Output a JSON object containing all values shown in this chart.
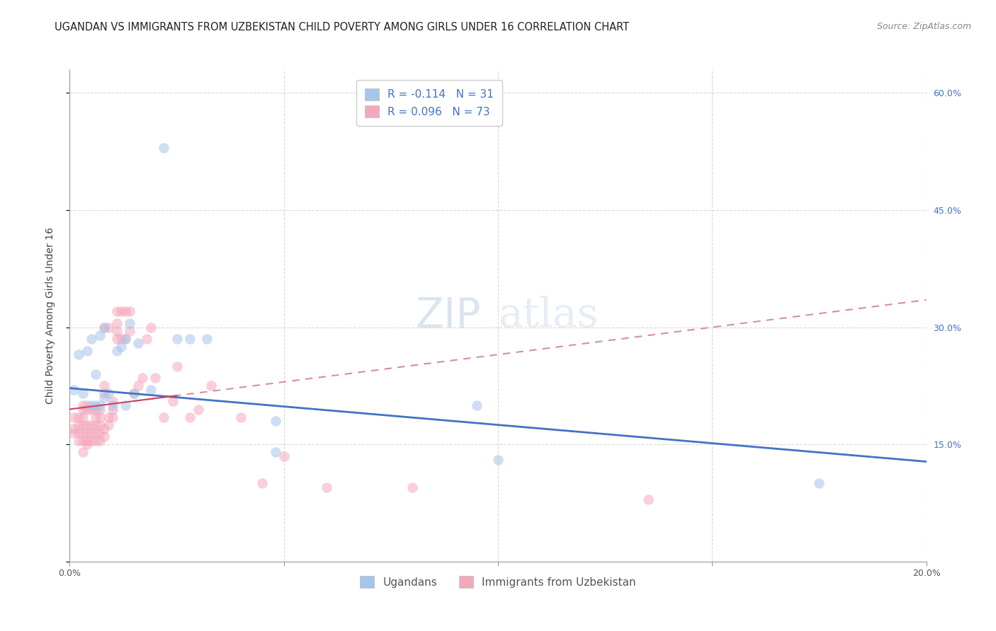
{
  "title": "UGANDAN VS IMMIGRANTS FROM UZBEKISTAN CHILD POVERTY AMONG GIRLS UNDER 16 CORRELATION CHART",
  "source": "Source: ZipAtlas.com",
  "ylabel": "Child Poverty Among Girls Under 16",
  "xlim": [
    0.0,
    0.2
  ],
  "ylim": [
    0.0,
    0.63
  ],
  "ugandan_color": "#a8c4e8",
  "uzbekistan_color": "#f4a8bc",
  "trend_ugandan_color": "#4472c4",
  "trend_uzbekistan_solid_color": "#d04060",
  "trend_uzbekistan_dash_color": "#d4909c",
  "legend_r1": "R = -0.114",
  "legend_n1": "N = 31",
  "legend_r2": "R = 0.096",
  "legend_n2": "N = 73",
  "label1": "Ugandans",
  "label2": "Immigrants from Uzbekistan",
  "watermark_zip": "ZIP",
  "watermark_atlas": "atlas",
  "ugandan_x": [
    0.002,
    0.003,
    0.004,
    0.005,
    0.005,
    0.006,
    0.006,
    0.007,
    0.007,
    0.008,
    0.008,
    0.009,
    0.01,
    0.011,
    0.012,
    0.013,
    0.013,
    0.014,
    0.015,
    0.016,
    0.019,
    0.022,
    0.025,
    0.028,
    0.032,
    0.048,
    0.048,
    0.095,
    0.1,
    0.175,
    0.001
  ],
  "ugandan_y": [
    0.265,
    0.215,
    0.27,
    0.2,
    0.285,
    0.2,
    0.24,
    0.2,
    0.29,
    0.21,
    0.3,
    0.215,
    0.2,
    0.27,
    0.275,
    0.2,
    0.285,
    0.305,
    0.215,
    0.28,
    0.22,
    0.53,
    0.285,
    0.285,
    0.285,
    0.18,
    0.14,
    0.2,
    0.13,
    0.1,
    0.22
  ],
  "uzbekistan_x": [
    0.001,
    0.001,
    0.001,
    0.002,
    0.002,
    0.002,
    0.002,
    0.003,
    0.003,
    0.003,
    0.003,
    0.003,
    0.003,
    0.003,
    0.004,
    0.004,
    0.004,
    0.004,
    0.004,
    0.004,
    0.005,
    0.005,
    0.005,
    0.005,
    0.006,
    0.006,
    0.006,
    0.006,
    0.006,
    0.007,
    0.007,
    0.007,
    0.007,
    0.007,
    0.008,
    0.008,
    0.008,
    0.008,
    0.008,
    0.009,
    0.009,
    0.009,
    0.01,
    0.01,
    0.01,
    0.011,
    0.011,
    0.011,
    0.011,
    0.012,
    0.012,
    0.013,
    0.013,
    0.014,
    0.014,
    0.015,
    0.016,
    0.017,
    0.018,
    0.019,
    0.02,
    0.022,
    0.024,
    0.025,
    0.028,
    0.03,
    0.033,
    0.04,
    0.045,
    0.05,
    0.06,
    0.08,
    0.135
  ],
  "uzbekistan_y": [
    0.165,
    0.17,
    0.185,
    0.155,
    0.165,
    0.175,
    0.185,
    0.14,
    0.155,
    0.165,
    0.175,
    0.185,
    0.195,
    0.2,
    0.15,
    0.155,
    0.165,
    0.175,
    0.195,
    0.2,
    0.155,
    0.165,
    0.175,
    0.195,
    0.155,
    0.165,
    0.175,
    0.185,
    0.195,
    0.155,
    0.165,
    0.175,
    0.185,
    0.195,
    0.16,
    0.17,
    0.215,
    0.225,
    0.3,
    0.175,
    0.185,
    0.3,
    0.185,
    0.195,
    0.205,
    0.285,
    0.295,
    0.305,
    0.32,
    0.285,
    0.32,
    0.285,
    0.32,
    0.295,
    0.32,
    0.215,
    0.225,
    0.235,
    0.285,
    0.3,
    0.235,
    0.185,
    0.205,
    0.25,
    0.185,
    0.195,
    0.225,
    0.185,
    0.1,
    0.135,
    0.095,
    0.095,
    0.08
  ],
  "dot_size": 110,
  "dot_alpha": 0.55,
  "grid_color": "#d8d8d8",
  "background_color": "#ffffff",
  "title_fontsize": 10.5,
  "source_fontsize": 9,
  "axis_label_fontsize": 10,
  "tick_fontsize": 9,
  "legend_fontsize": 11,
  "watermark_fontsize": 42,
  "watermark_color": "#c4d4e4",
  "watermark_alpha": 0.45,
  "trend_ug_x0": 0.0,
  "trend_ug_y0": 0.222,
  "trend_ug_x1": 0.2,
  "trend_ug_y1": 0.128,
  "trend_uz_x0": 0.0,
  "trend_uz_y0": 0.195,
  "trend_uz_x1": 0.2,
  "trend_uz_y1": 0.335
}
